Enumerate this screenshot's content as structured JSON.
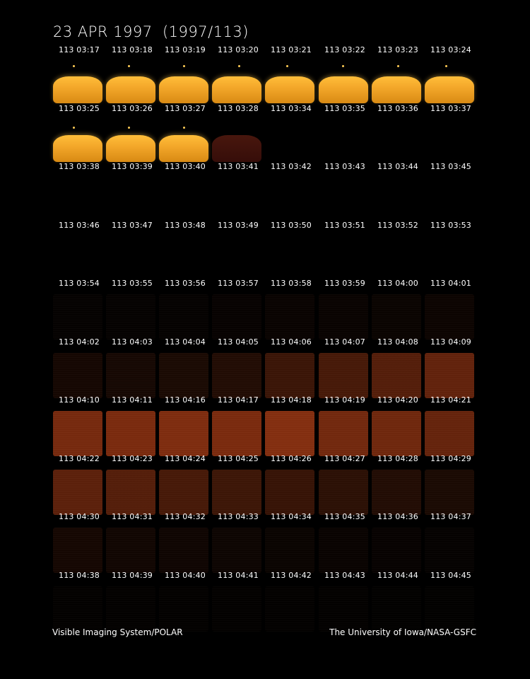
{
  "title": "23 APR 1997  (1997/113)",
  "footer": {
    "left": "Visible Imaging System/POLAR",
    "right": "The University of Iowa/NASA-GSFC"
  },
  "frames": [
    {
      "label": "113 03:17",
      "kind": "earth",
      "intensity": 1.0
    },
    {
      "label": "113 03:18",
      "kind": "earth",
      "intensity": 1.0
    },
    {
      "label": "113 03:19",
      "kind": "earth",
      "intensity": 1.0
    },
    {
      "label": "113 03:20",
      "kind": "earth",
      "intensity": 1.0
    },
    {
      "label": "113 03:21",
      "kind": "earth",
      "intensity": 1.0
    },
    {
      "label": "113 03:22",
      "kind": "earth",
      "intensity": 1.0
    },
    {
      "label": "113 03:23",
      "kind": "earth",
      "intensity": 1.0
    },
    {
      "label": "113 03:24",
      "kind": "earth",
      "intensity": 1.0
    },
    {
      "label": "113 03:25",
      "kind": "earth",
      "intensity": 1.0
    },
    {
      "label": "113 03:26",
      "kind": "earth",
      "intensity": 1.0
    },
    {
      "label": "113 03:27",
      "kind": "earth",
      "intensity": 1.0
    },
    {
      "label": "113 03:28",
      "kind": "earth-dim",
      "intensity": 0.45
    },
    {
      "label": "113 03:34",
      "kind": "dark",
      "intensity": 0.0
    },
    {
      "label": "113 03:35",
      "kind": "dark",
      "intensity": 0.0
    },
    {
      "label": "113 03:36",
      "kind": "dark",
      "intensity": 0.0
    },
    {
      "label": "113 03:37",
      "kind": "dark",
      "intensity": 0.0
    },
    {
      "label": "113 03:38",
      "kind": "dark",
      "intensity": 0.0
    },
    {
      "label": "113 03:39",
      "kind": "dark",
      "intensity": 0.0
    },
    {
      "label": "113 03:40",
      "kind": "dark",
      "intensity": 0.0
    },
    {
      "label": "113 03:41",
      "kind": "dark",
      "intensity": 0.0
    },
    {
      "label": "113 03:42",
      "kind": "dark",
      "intensity": 0.0
    },
    {
      "label": "113 03:43",
      "kind": "dark",
      "intensity": 0.0
    },
    {
      "label": "113 03:44",
      "kind": "dark",
      "intensity": 0.0
    },
    {
      "label": "113 03:45",
      "kind": "dark",
      "intensity": 0.0
    },
    {
      "label": "113 03:46",
      "kind": "dark",
      "intensity": 0.0
    },
    {
      "label": "113 03:47",
      "kind": "dark",
      "intensity": 0.0
    },
    {
      "label": "113 03:48",
      "kind": "dark",
      "intensity": 0.0
    },
    {
      "label": "113 03:49",
      "kind": "dark",
      "intensity": 0.0
    },
    {
      "label": "113 03:50",
      "kind": "dark",
      "intensity": 0.0
    },
    {
      "label": "113 03:51",
      "kind": "dark",
      "intensity": 0.0
    },
    {
      "label": "113 03:52",
      "kind": "dark",
      "intensity": 0.0
    },
    {
      "label": "113 03:53",
      "kind": "dark",
      "intensity": 0.0
    },
    {
      "label": "113 03:54",
      "kind": "glow",
      "intensity": 0.03
    },
    {
      "label": "113 03:55",
      "kind": "glow",
      "intensity": 0.03
    },
    {
      "label": "113 03:56",
      "kind": "glow",
      "intensity": 0.03
    },
    {
      "label": "113 03:57",
      "kind": "glow",
      "intensity": 0.04
    },
    {
      "label": "113 03:58",
      "kind": "glow",
      "intensity": 0.05
    },
    {
      "label": "113 03:59",
      "kind": "glow",
      "intensity": 0.05
    },
    {
      "label": "113 04:00",
      "kind": "glow",
      "intensity": 0.06
    },
    {
      "label": "113 04:01",
      "kind": "glow",
      "intensity": 0.07
    },
    {
      "label": "113 04:02",
      "kind": "glow",
      "intensity": 0.12
    },
    {
      "label": "113 04:03",
      "kind": "glow",
      "intensity": 0.13
    },
    {
      "label": "113 04:04",
      "kind": "glow",
      "intensity": 0.16
    },
    {
      "label": "113 04:05",
      "kind": "glow",
      "intensity": 0.2
    },
    {
      "label": "113 04:06",
      "kind": "glow",
      "intensity": 0.35
    },
    {
      "label": "113 04:07",
      "kind": "glow",
      "intensity": 0.42
    },
    {
      "label": "113 04:08",
      "kind": "glow",
      "intensity": 0.5
    },
    {
      "label": "113 04:09",
      "kind": "glow",
      "intensity": 0.58
    },
    {
      "label": "113 04:10",
      "kind": "glow",
      "intensity": 0.7
    },
    {
      "label": "113 04:11",
      "kind": "glow",
      "intensity": 0.72
    },
    {
      "label": "113 04:16",
      "kind": "glow",
      "intensity": 0.75
    },
    {
      "label": "113 04:17",
      "kind": "glow",
      "intensity": 0.72
    },
    {
      "label": "113 04:18",
      "kind": "glow",
      "intensity": 0.78
    },
    {
      "label": "113 04:19",
      "kind": "glow",
      "intensity": 0.68
    },
    {
      "label": "113 04:20",
      "kind": "glow",
      "intensity": 0.66
    },
    {
      "label": "113 04:21",
      "kind": "glow",
      "intensity": 0.6
    },
    {
      "label": "113 04:22",
      "kind": "glow",
      "intensity": 0.55
    },
    {
      "label": "113 04:23",
      "kind": "glow",
      "intensity": 0.5
    },
    {
      "label": "113 04:24",
      "kind": "glow",
      "intensity": 0.42
    },
    {
      "label": "113 04:25",
      "kind": "glow",
      "intensity": 0.36
    },
    {
      "label": "113 04:26",
      "kind": "glow",
      "intensity": 0.32
    },
    {
      "label": "113 04:27",
      "kind": "glow",
      "intensity": 0.26
    },
    {
      "label": "113 04:28",
      "kind": "glow",
      "intensity": 0.2
    },
    {
      "label": "113 04:29",
      "kind": "glow",
      "intensity": 0.16
    },
    {
      "label": "113 04:30",
      "kind": "glow",
      "intensity": 0.12
    },
    {
      "label": "113 04:31",
      "kind": "glow",
      "intensity": 0.1
    },
    {
      "label": "113 04:32",
      "kind": "glow",
      "intensity": 0.09
    },
    {
      "label": "113 04:33",
      "kind": "glow",
      "intensity": 0.08
    },
    {
      "label": "113 04:34",
      "kind": "glow",
      "intensity": 0.06
    },
    {
      "label": "113 04:35",
      "kind": "glow",
      "intensity": 0.05
    },
    {
      "label": "113 04:36",
      "kind": "glow",
      "intensity": 0.04
    },
    {
      "label": "113 04:37",
      "kind": "glow",
      "intensity": 0.03
    },
    {
      "label": "113 04:38",
      "kind": "glow",
      "intensity": 0.02
    },
    {
      "label": "113 04:39",
      "kind": "glow",
      "intensity": 0.02
    },
    {
      "label": "113 04:40",
      "kind": "glow",
      "intensity": 0.02
    },
    {
      "label": "113 04:41",
      "kind": "glow",
      "intensity": 0.02
    },
    {
      "label": "113 04:42",
      "kind": "glow",
      "intensity": 0.02
    },
    {
      "label": "113 04:43",
      "kind": "glow",
      "intensity": 0.015
    },
    {
      "label": "113 04:44",
      "kind": "glow",
      "intensity": 0.01
    },
    {
      "label": "113 04:45",
      "kind": "glow",
      "intensity": 0.01
    }
  ]
}
